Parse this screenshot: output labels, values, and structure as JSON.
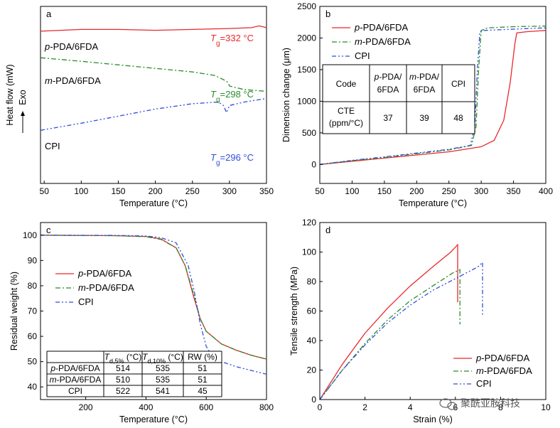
{
  "chart_data": [
    {
      "type": "line",
      "panel": "a",
      "xlabel": "Temperature (°C)",
      "ylabel": "Heat flow (mW)",
      "y_annotation": "Exo",
      "xlim": [
        45,
        350
      ],
      "xticks": [
        50,
        100,
        150,
        200,
        250,
        300,
        350
      ],
      "y_tick_labels": false,
      "series": [
        {
          "name": "p-PDA/6FDA",
          "name_prefix": "p",
          "name_suffix": "-PDA/6FDA",
          "color": "#e8282c",
          "annotation": "Tg=332 °C",
          "x": [
            45,
            100,
            150,
            200,
            250,
            300,
            330,
            340,
            350
          ],
          "y": [
            0.86,
            0.87,
            0.87,
            0.865,
            0.87,
            0.875,
            0.88,
            0.89,
            0.88
          ]
        },
        {
          "name": "m-PDA/6FDA",
          "name_prefix": "m",
          "name_suffix": "-PDA/6FDA",
          "color": "#2a8a2a",
          "annotation": "Tg=298 °C",
          "x": [
            45,
            100,
            150,
            200,
            250,
            280,
            295,
            298,
            300,
            320,
            350
          ],
          "y": [
            0.71,
            0.69,
            0.67,
            0.65,
            0.63,
            0.61,
            0.58,
            0.57,
            0.55,
            0.53,
            0.52
          ]
        },
        {
          "name": "CPI",
          "color": "#2f4fd8",
          "annotation": "Tg=296 °C",
          "x": [
            45,
            100,
            150,
            200,
            250,
            285,
            292,
            296,
            300,
            320,
            350
          ],
          "y": [
            0.3,
            0.34,
            0.38,
            0.42,
            0.45,
            0.46,
            0.44,
            0.4,
            0.44,
            0.46,
            0.48
          ]
        }
      ]
    },
    {
      "type": "line",
      "panel": "b",
      "xlabel": "Temperature (°C)",
      "ylabel": "Dimension change (μm)",
      "xlim": [
        50,
        400
      ],
      "ylim": [
        -300,
        2500
      ],
      "xticks": [
        50,
        100,
        150,
        200,
        250,
        300,
        350,
        400
      ],
      "yticks": [
        0,
        500,
        1000,
        1500,
        2000,
        2500
      ],
      "legend": "top-right",
      "series": [
        {
          "name": "p-PDA/6FDA",
          "name_prefix": "p",
          "name_suffix": "-PDA/6FDA",
          "color": "#e8282c",
          "x": [
            50,
            100,
            150,
            200,
            250,
            300,
            320,
            335,
            345,
            352,
            355,
            370,
            400
          ],
          "y": [
            0,
            50,
            100,
            150,
            200,
            280,
            380,
            700,
            1300,
            1900,
            2080,
            2100,
            2120
          ]
        },
        {
          "name": "m-PDA/6FDA",
          "name_prefix": "m",
          "name_suffix": "-PDA/6FDA",
          "color": "#2a8a2a",
          "x": [
            50,
            100,
            150,
            200,
            250,
            285,
            292,
            296,
            300,
            310,
            350,
            400
          ],
          "y": [
            0,
            60,
            110,
            170,
            230,
            300,
            600,
            1500,
            2120,
            2160,
            2180,
            2190
          ]
        },
        {
          "name": "CPI",
          "color": "#2f4fd8",
          "x": [
            50,
            100,
            150,
            200,
            250,
            283,
            290,
            294,
            298,
            305,
            350,
            400
          ],
          "y": [
            0,
            65,
            120,
            180,
            240,
            300,
            600,
            1500,
            2100,
            2120,
            2140,
            2160
          ]
        }
      ],
      "table": {
        "headers": [
          "Code",
          "p-PDA/6FDA",
          "m-PDA/6FDA",
          "CPI"
        ],
        "row_label": "CTE (ppm/°C)",
        "values": [
          "37",
          "39",
          "48"
        ]
      }
    },
    {
      "type": "line",
      "panel": "c",
      "xlabel": "Temperature (°C)",
      "ylabel": "Residual weight (%)",
      "xlim": [
        50,
        800
      ],
      "ylim": [
        35,
        105
      ],
      "xticks": [
        200,
        400,
        600,
        800
      ],
      "yticks": [
        40,
        50,
        60,
        70,
        80,
        90,
        100
      ],
      "legend": "middle-left",
      "series": [
        {
          "name": "p-PDA/6FDA",
          "name_prefix": "p",
          "name_suffix": "-PDA/6FDA",
          "color": "#e8282c",
          "x": [
            50,
            300,
            400,
            450,
            500,
            530,
            560,
            580,
            600,
            650,
            700,
            750,
            800
          ],
          "y": [
            100,
            99.8,
            99.5,
            98.5,
            95,
            88,
            75,
            67,
            62,
            57,
            54.5,
            52.5,
            51
          ]
        },
        {
          "name": "m-PDA/6FDA",
          "name_prefix": "m",
          "name_suffix": "-PDA/6FDA",
          "color": "#2a8a2a",
          "x": [
            50,
            300,
            400,
            450,
            500,
            530,
            560,
            580,
            600,
            650,
            700,
            750,
            800
          ],
          "y": [
            100,
            99.8,
            99.4,
            98.3,
            95,
            88,
            76,
            67,
            62,
            57,
            54.5,
            52.5,
            51
          ]
        },
        {
          "name": "CPI",
          "color": "#2f4fd8",
          "x": [
            50,
            300,
            400,
            450,
            500,
            540,
            560,
            580,
            600,
            620,
            650,
            700,
            800
          ],
          "y": [
            100,
            99.9,
            99.7,
            99,
            97,
            88,
            78,
            65,
            56,
            52,
            50,
            48,
            45
          ]
        }
      ],
      "table": {
        "headers": [
          "",
          "Td,5% (°C)",
          "Td,10% (°C)",
          "RW (%)"
        ],
        "header_parts": [
          {
            "base": "T",
            "sub": "d,5%",
            "tail": " (°C)"
          },
          {
            "base": "T",
            "sub": "d,10%",
            "tail": " (°C)"
          }
        ],
        "rows": [
          {
            "label": "p-PDA/6FDA",
            "prefix": "p",
            "suffix": "-PDA/6FDA",
            "values": [
              "514",
              "535",
              "51"
            ]
          },
          {
            "label": "m-PDA/6FDA",
            "prefix": "m",
            "suffix": "-PDA/6FDA",
            "values": [
              "510",
              "535",
              "51"
            ]
          },
          {
            "label": "CPI",
            "values": [
              "522",
              "541",
              "45"
            ]
          }
        ]
      }
    },
    {
      "type": "line",
      "panel": "d",
      "xlabel": "Strain (%)",
      "ylabel": "Tensile strength (MPa)",
      "xlim": [
        0,
        10
      ],
      "ylim": [
        0,
        120
      ],
      "xticks": [
        0,
        2,
        4,
        6,
        8,
        10
      ],
      "yticks": [
        0,
        20,
        40,
        60,
        80,
        100,
        120
      ],
      "legend": "bottom-right",
      "series": [
        {
          "name": "p-PDA/6FDA",
          "name_prefix": "p",
          "name_suffix": "-PDA/6FDA",
          "color": "#e8282c",
          "x": [
            0,
            1,
            2,
            3,
            4,
            5,
            5.8,
            6.1,
            6.1
          ],
          "y": [
            0,
            24,
            45,
            62,
            77,
            90,
            100,
            105,
            66
          ]
        },
        {
          "name": "m-PDA/6FDA",
          "name_prefix": "m",
          "name_suffix": "-PDA/6FDA",
          "color": "#2a8a2a",
          "x": [
            0,
            1,
            2,
            3,
            4,
            5,
            5.9,
            6.2,
            6.2
          ],
          "y": [
            0,
            20,
            38,
            54,
            67,
            77,
            86,
            88,
            51
          ]
        },
        {
          "name": "CPI",
          "color": "#2f4fd8",
          "x": [
            0,
            1,
            2,
            3,
            4,
            5,
            6,
            7,
            7.2,
            7.2
          ],
          "y": [
            0,
            20,
            37,
            52,
            64,
            74,
            82,
            90,
            93,
            57
          ]
        }
      ]
    }
  ],
  "watermark": "聚酰亚胺科技"
}
